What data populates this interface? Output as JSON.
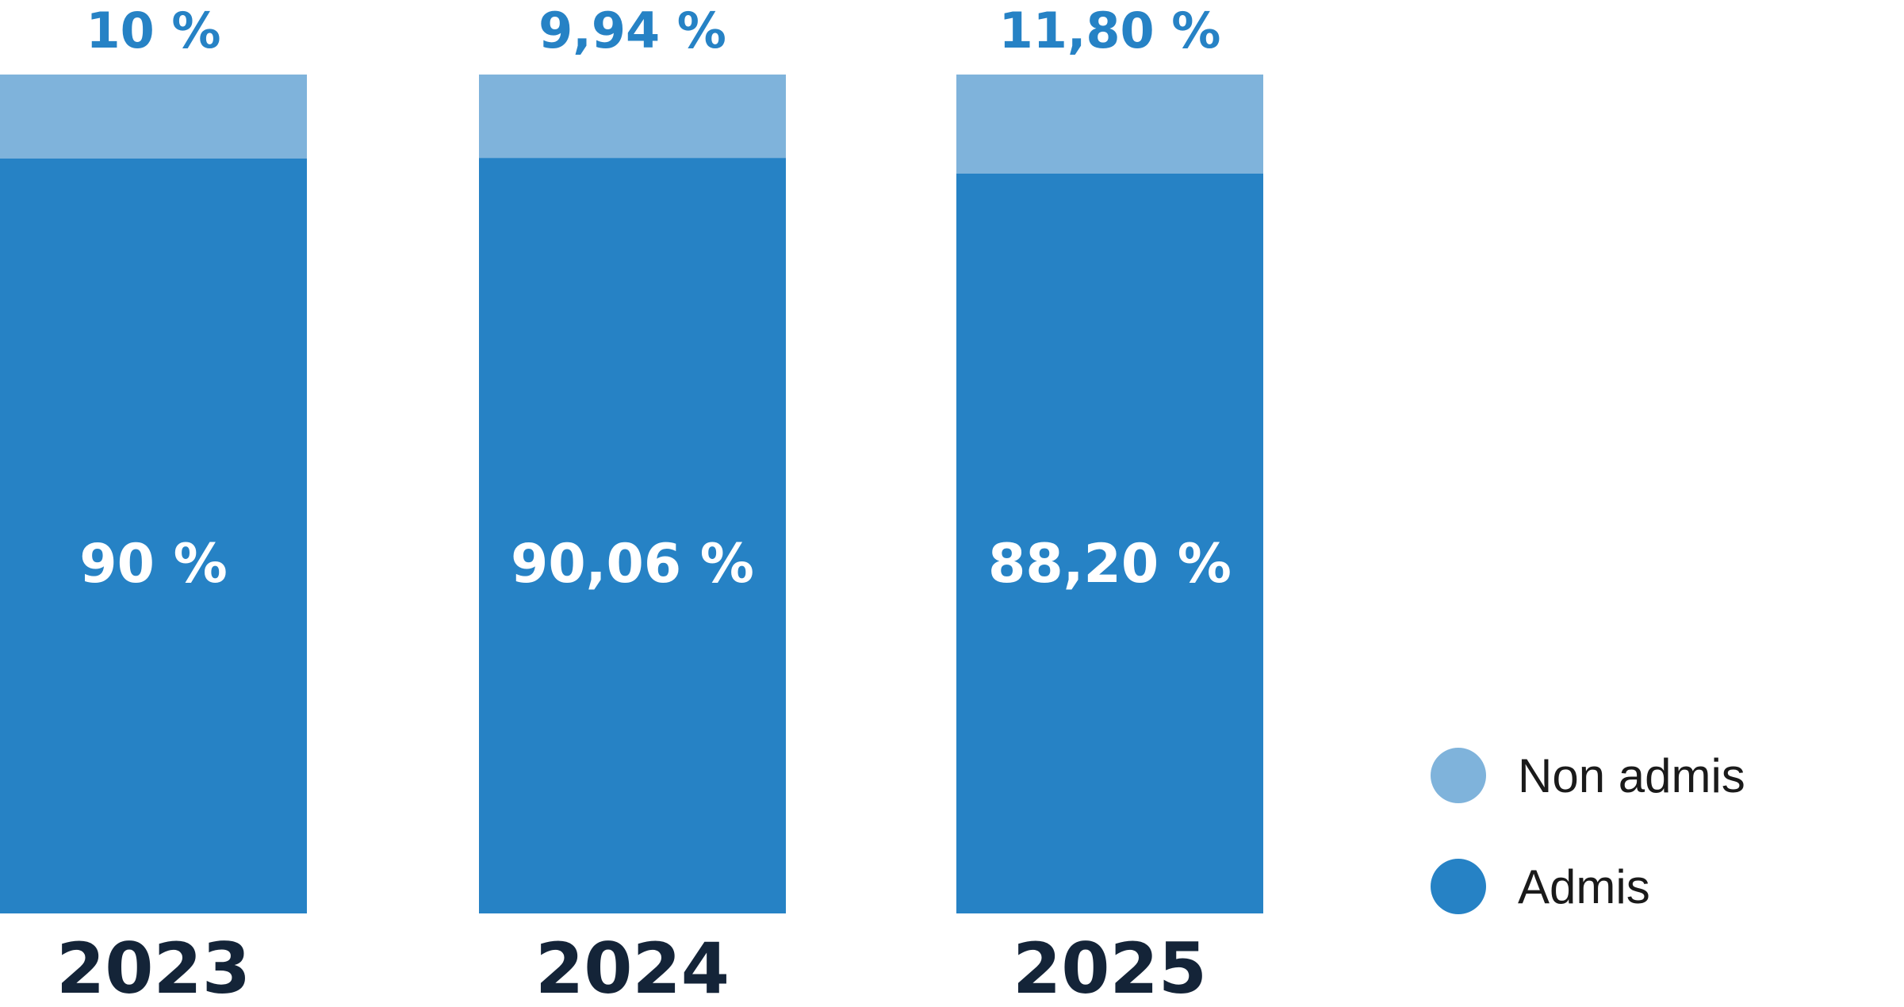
{
  "chart_data": {
    "type": "bar",
    "stacked": true,
    "categories": [
      "2023",
      "2024",
      "2025"
    ],
    "series": [
      {
        "name": "Admis",
        "values": [
          90,
          90.06,
          88.2
        ],
        "labels": [
          "90 %",
          "90,06 %",
          "88,20 %"
        ],
        "color": "#2682c5"
      },
      {
        "name": "Non admis",
        "values": [
          10,
          9.94,
          11.8
        ],
        "labels": [
          "10 %",
          "9,94 %",
          "11,80 %"
        ],
        "color": "#7fb3db"
      }
    ],
    "ylim": [
      0,
      100
    ],
    "grid": false,
    "legend": "bottom-right",
    "colors": {
      "top_label": "#2682c5",
      "inner_label": "#ffffff",
      "year_label": "#142438",
      "legend_text": "#1a1a1a"
    }
  }
}
